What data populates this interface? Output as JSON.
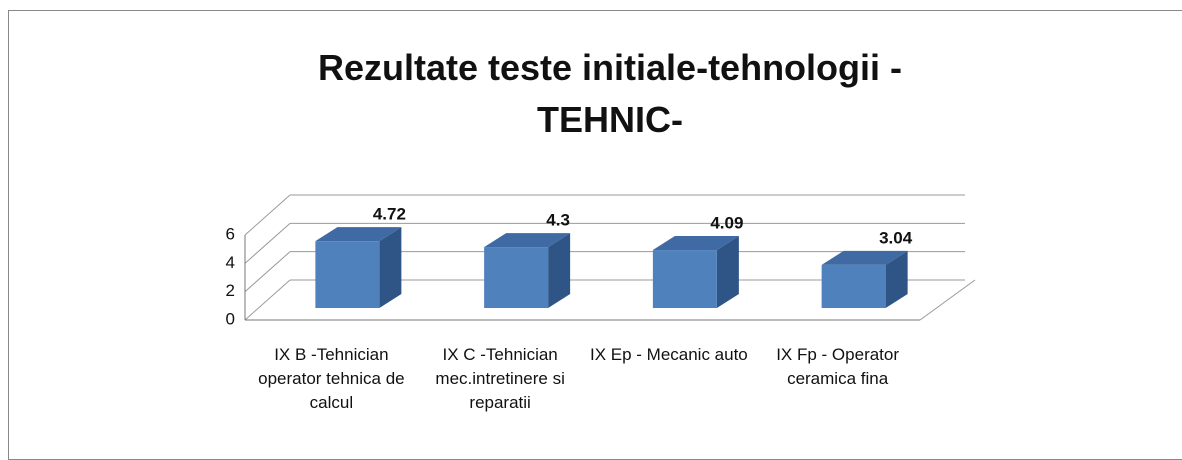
{
  "chart_data": {
    "type": "bar3d",
    "title": "Rezultate teste initiale-tehnologii -TEHNIC-",
    "categories": [
      "IX B -Tehnician operator tehnica de calcul",
      "IX C -Tehnician mec.intretinere si reparatii",
      "IX Ep - Mecanic auto",
      "IX Fp - Operator ceramica fina"
    ],
    "values": [
      4.72,
      4.3,
      4.09,
      3.04
    ],
    "color": "#4f81bd",
    "ylim": [
      0,
      6
    ],
    "yticks": [
      0,
      2,
      4,
      6
    ],
    "grid": true
  }
}
